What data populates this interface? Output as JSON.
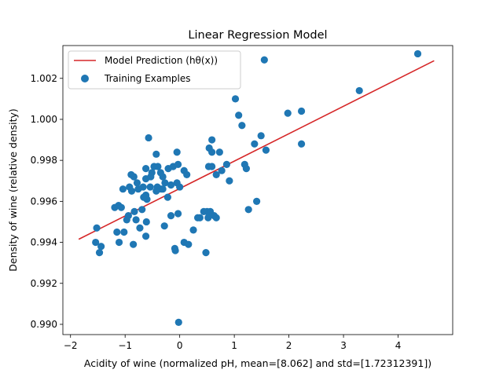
{
  "chart_data": {
    "type": "scatter",
    "title": "Linear Regression Model",
    "xlabel": "Acidity of wine (normalized pH, mean=[8.062] and std=[1.72312391])",
    "ylabel": "Density of wine (relative density)",
    "xlim": [
      -2.14,
      5.0
    ],
    "ylim": [
      0.9895,
      1.0036
    ],
    "xticks": [
      -2,
      -1,
      0,
      1,
      2,
      3,
      4
    ],
    "yticks": [
      0.99,
      0.992,
      0.994,
      0.996,
      0.998,
      1.0,
      1.002
    ],
    "xtick_labels": [
      "−2",
      "−1",
      "0",
      "1",
      "2",
      "3",
      "4"
    ],
    "ytick_labels": [
      "0.990",
      "0.992",
      "0.994",
      "0.996",
      "0.998",
      "1.000",
      "1.002"
    ],
    "grid": false,
    "legend_position": "top-left",
    "legend": {
      "line_label": "Model Prediction (hθ(x))",
      "scatter_label": "Training Examples"
    },
    "colors": {
      "line": "#d62728",
      "points": "#1f77b4"
    },
    "series": [
      {
        "name": "Model Prediction (hθ(x))",
        "kind": "line",
        "x": [
          -1.85,
          4.66
        ],
        "y": [
          0.99415,
          1.00286
        ]
      },
      {
        "name": "Training Examples",
        "kind": "scatter",
        "x": [
          4.36,
          1.55,
          3.29,
          1.02,
          2.23,
          1.98,
          1.08,
          1.14,
          1.49,
          2.23,
          1.58,
          1.37,
          0.54,
          0.59,
          0.59,
          0.73,
          0.91,
          0.53,
          0.77,
          0.86,
          1.19,
          1.22,
          0.59,
          0.67,
          1.26,
          1.41,
          0.5,
          0.44,
          0.56,
          0.63,
          0.67,
          0.37,
          -0.03,
          -0.28,
          -0.16,
          -0.05,
          -0.43,
          -0.4,
          0.08,
          -0.12,
          -0.57,
          -0.62,
          0.13,
          -0.21,
          -0.03,
          -0.35,
          -0.51,
          -0.47,
          -0.62,
          -0.89,
          -0.92,
          -0.78,
          -0.84,
          -0.53,
          -0.41,
          -0.31,
          -0.27,
          -0.16,
          -0.05,
          -0.6,
          -0.54,
          -0.67,
          -0.88,
          -0.76,
          -0.62,
          -0.66,
          -1.04,
          -1.12,
          -1.19,
          -1.07,
          -0.97,
          -0.83,
          -0.8,
          -0.94,
          -0.69,
          -0.34,
          0.0,
          -0.22,
          -0.31,
          -0.43,
          0.25,
          0.33,
          0.08,
          0.16,
          -0.08,
          -0.09,
          -1.52,
          -1.54,
          -1.44,
          -1.47,
          -1.15,
          -1.11,
          -0.85,
          -0.62,
          -0.61,
          -1.02,
          -0.73,
          -0.02,
          0.48,
          0.52
        ],
        "y": [
          1.0032,
          1.0029,
          1.0014,
          1.001,
          1.0004,
          1.0003,
          1.0002,
          0.9997,
          0.9992,
          0.9988,
          0.9985,
          0.9988,
          0.9986,
          0.999,
          0.9984,
          0.9984,
          0.997,
          0.9977,
          0.9975,
          0.9978,
          0.9978,
          0.9976,
          0.9977,
          0.9973,
          0.9956,
          0.996,
          0.9955,
          0.9955,
          0.9955,
          0.9953,
          0.9952,
          0.9952,
          0.9954,
          0.9948,
          0.9953,
          0.9984,
          0.9983,
          0.9977,
          0.9975,
          0.9977,
          0.9991,
          0.9976,
          0.9973,
          0.9976,
          0.9978,
          0.9974,
          0.9974,
          0.9977,
          0.9971,
          0.9973,
          0.9967,
          0.9969,
          0.9972,
          0.9972,
          0.9967,
          0.9972,
          0.9969,
          0.9968,
          0.9969,
          0.9961,
          0.9967,
          0.9967,
          0.9965,
          0.9966,
          0.9963,
          0.9962,
          0.9966,
          0.9958,
          0.9957,
          0.9957,
          0.9951,
          0.9955,
          0.9951,
          0.9953,
          0.9956,
          0.9966,
          0.9967,
          0.9962,
          0.9966,
          0.9965,
          0.9946,
          0.9952,
          0.994,
          0.9939,
          0.9936,
          0.9937,
          0.9947,
          0.994,
          0.9938,
          0.9935,
          0.9945,
          0.994,
          0.9939,
          0.9943,
          0.995,
          0.9945,
          0.9947,
          0.9901,
          0.9935,
          0.9952
        ]
      }
    ]
  }
}
